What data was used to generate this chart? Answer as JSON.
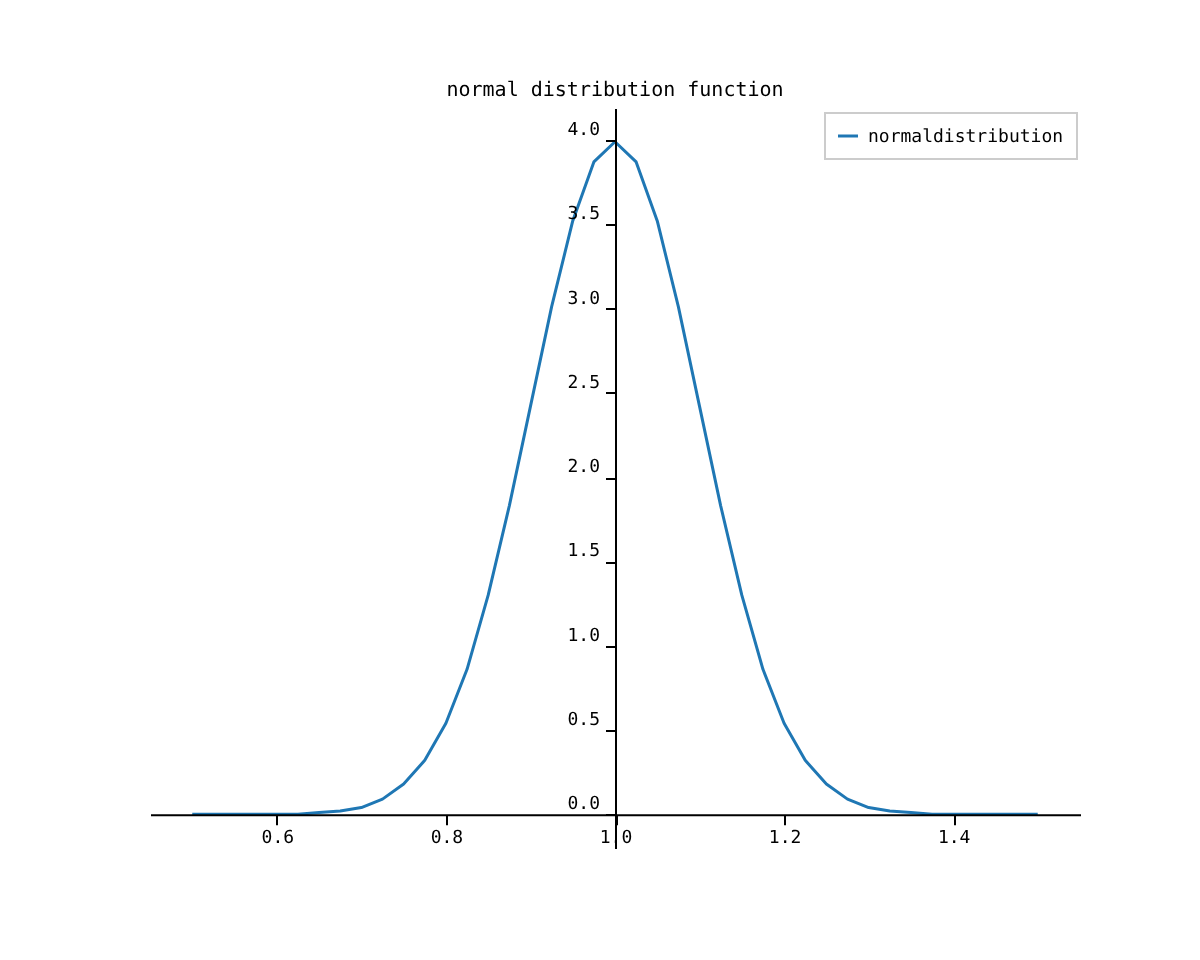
{
  "chart_data": {
    "type": "line",
    "title": "normal distribution function",
    "x": [
      0.5,
      0.525,
      0.55,
      0.575,
      0.6,
      0.625,
      0.65,
      0.675,
      0.7,
      0.725,
      0.75,
      0.775,
      0.8,
      0.825,
      0.85,
      0.875,
      0.9,
      0.925,
      0.95,
      0.975,
      1.0,
      1.025,
      1.05,
      1.075,
      1.1,
      1.125,
      1.15,
      1.175,
      1.2,
      1.225,
      1.25,
      1.275,
      1.3,
      1.325,
      1.35,
      1.375,
      1.4,
      1.425,
      1.45,
      1.475,
      1.5
    ],
    "series": [
      {
        "name": "normaldistribution",
        "color": "#1f77b4",
        "values": [
          0,
          0,
          0,
          0,
          0,
          0,
          0.01,
          0.02,
          0.04,
          0.09,
          0.18,
          0.32,
          0.54,
          0.86,
          1.3,
          1.83,
          2.42,
          3.01,
          3.52,
          3.87,
          3.99,
          3.87,
          3.52,
          3.01,
          2.42,
          1.83,
          1.3,
          0.86,
          0.54,
          0.32,
          0.18,
          0.09,
          0.04,
          0.02,
          0.01,
          0,
          0,
          0,
          0,
          0,
          0
        ]
      }
    ],
    "xlim": [
      0.45,
      1.55
    ],
    "ylim": [
      -0.2,
      4.19
    ],
    "xticks": [
      0.6,
      0.8,
      {
        "value": 1.0,
        "label": "1.0"
      },
      1.2,
      1.4
    ],
    "yticks": [
      {
        "value": 0,
        "label": "0.0"
      },
      0.5,
      {
        "value": 1.0,
        "label": "1.0"
      },
      1.5,
      {
        "value": 2.0,
        "label": "2.0"
      },
      2.5,
      {
        "value": 3.0,
        "label": "3.0"
      },
      3.5,
      {
        "value": 4.0,
        "label": "4.0"
      }
    ],
    "grid": false,
    "legend": "top right",
    "line_style": "solid",
    "marker": "none"
  }
}
